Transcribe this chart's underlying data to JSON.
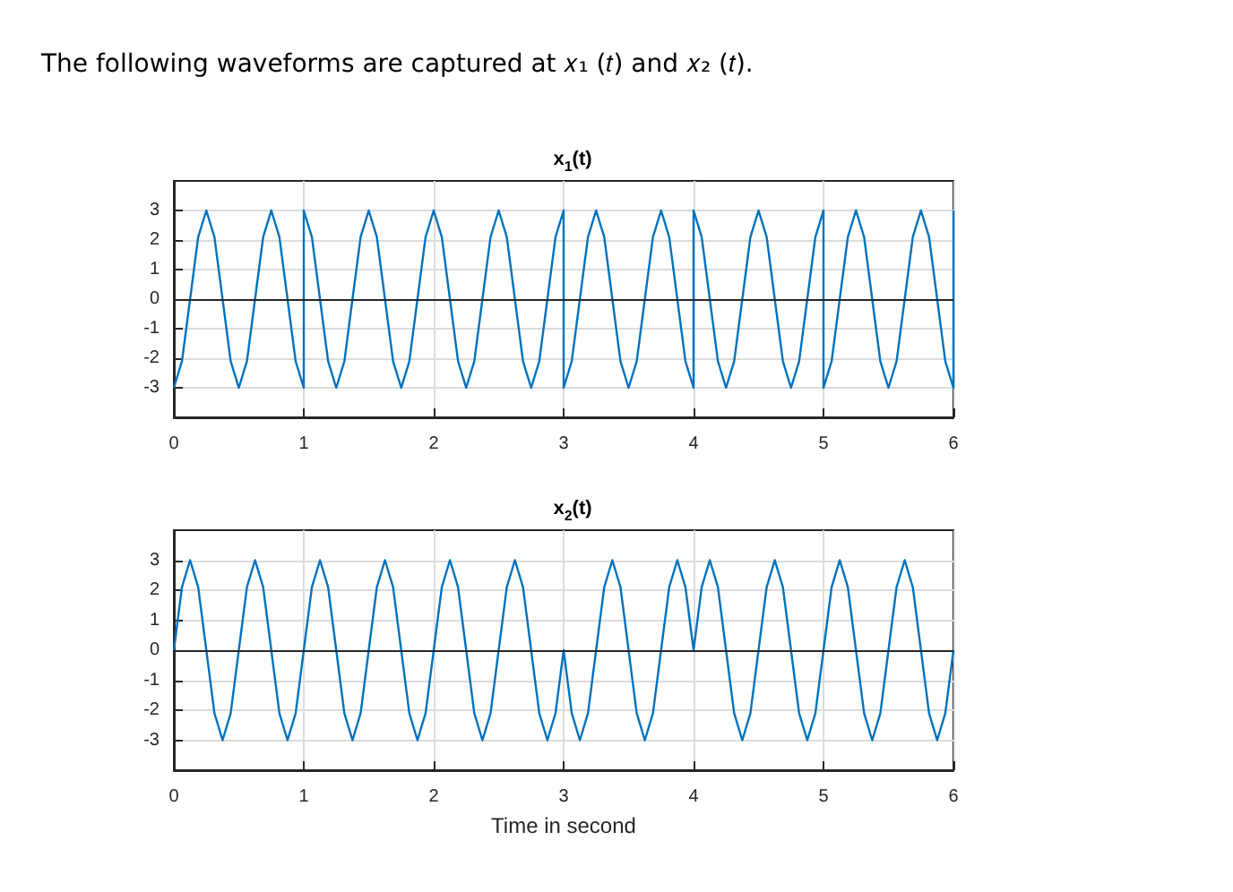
{
  "chart_data": [
    {
      "type": "line",
      "title": "x$_{1}$(t)",
      "annotations": [
        "The following waveforms are captured at 𝑥₁ (𝑡) and 𝑥₂ (𝑡)."
      ],
      "x": [
        0,
        0.0625,
        0.125,
        0.1875,
        0.25,
        0.3125,
        0.375,
        0.4375,
        0.5,
        0.5625,
        0.625,
        0.6875,
        0.75,
        0.8125,
        0.875,
        0.9375,
        1,
        1,
        1.0625,
        1.125,
        1.1875,
        1.25,
        1.3125,
        1.375,
        1.4375,
        1.5,
        1.5625,
        1.625,
        1.6875,
        1.75,
        1.8125,
        1.875,
        1.9375,
        2,
        2.0625,
        2.125,
        2.1875,
        2.25,
        2.3125,
        2.375,
        2.4375,
        2.5,
        2.5625,
        2.625,
        2.6875,
        2.75,
        2.8125,
        2.875,
        2.9375,
        3,
        3,
        3.0625,
        3.125,
        3.1875,
        3.25,
        3.3125,
        3.375,
        3.4375,
        3.5,
        3.5625,
        3.625,
        3.6875,
        3.75,
        3.8125,
        3.875,
        3.9375,
        4,
        4,
        4.0625,
        4.125,
        4.1875,
        4.25,
        4.3125,
        4.375,
        4.4375,
        4.5,
        4.5625,
        4.625,
        4.6875,
        4.75,
        4.8125,
        4.875,
        4.9375,
        5,
        5,
        5.0625,
        5.125,
        5.1875,
        5.25,
        5.3125,
        5.375,
        5.4375,
        5.5,
        5.5625,
        5.625,
        5.6875,
        5.75,
        5.8125,
        5.875,
        5.9375,
        6,
        6
      ],
      "series": [
        {
          "color": "#0072bd",
          "values": [
            -3,
            -2.1,
            0,
            2.1,
            3,
            2.1,
            0,
            -2.1,
            -3,
            -2.1,
            0,
            2.1,
            3,
            2.1,
            0,
            -2.1,
            -3,
            3,
            2.1,
            0,
            -2.1,
            -3,
            -2.1,
            0,
            2.1,
            3,
            2.1,
            0,
            -2.1,
            -3,
            -2.1,
            0,
            2.1,
            3,
            2.1,
            0,
            -2.1,
            -3,
            -2.1,
            0,
            2.1,
            3,
            2.1,
            0,
            -2.1,
            -3,
            -2.1,
            0,
            2.1,
            3,
            -3,
            -2.1,
            0,
            2.1,
            3,
            2.1,
            0,
            -2.1,
            -3,
            -2.1,
            0,
            2.1,
            3,
            2.1,
            0,
            -2.1,
            -3,
            3,
            2.1,
            0,
            -2.1,
            -3,
            -2.1,
            0,
            2.1,
            3,
            2.1,
            0,
            -2.1,
            -3,
            -2.1,
            0,
            2.1,
            3,
            -3,
            -2.1,
            0,
            2.1,
            3,
            2.1,
            0,
            -2.1,
            -3,
            -2.1,
            0,
            2.1,
            3,
            2.1,
            0,
            -2.1,
            -3,
            3
          ]
        }
      ],
      "xlim": [
        0,
        6
      ],
      "xticks": [
        0,
        1,
        2,
        3,
        4,
        5,
        6
      ],
      "ylim": [
        -4,
        4
      ],
      "yticks": [
        -3,
        -2,
        -1,
        0,
        1,
        2,
        3
      ],
      "grid": true,
      "ref_lines": [
        {
          "axis": "y",
          "value": 0,
          "color": "#262626"
        }
      ]
    },
    {
      "type": "line",
      "title": "x$_{2}$(t)",
      "xlabel": "Time in second",
      "x": [
        0,
        0.0625,
        0.125,
        0.1875,
        0.25,
        0.3125,
        0.375,
        0.4375,
        0.5,
        0.5625,
        0.625,
        0.6875,
        0.75,
        0.8125,
        0.875,
        0.9375,
        1,
        1.0625,
        1.125,
        1.1875,
        1.25,
        1.3125,
        1.375,
        1.4375,
        1.5,
        1.5625,
        1.625,
        1.6875,
        1.75,
        1.8125,
        1.875,
        1.9375,
        2,
        2.0625,
        2.125,
        2.1875,
        2.25,
        2.3125,
        2.375,
        2.4375,
        2.5,
        2.5625,
        2.625,
        2.6875,
        2.75,
        2.8125,
        2.875,
        2.9375,
        3,
        3.0625,
        3.125,
        3.1875,
        3.25,
        3.3125,
        3.375,
        3.4375,
        3.5,
        3.5625,
        3.625,
        3.6875,
        3.75,
        3.8125,
        3.875,
        3.9375,
        4,
        4.0625,
        4.125,
        4.1875,
        4.25,
        4.3125,
        4.375,
        4.4375,
        4.5,
        4.5625,
        4.625,
        4.6875,
        4.75,
        4.8125,
        4.875,
        4.9375,
        5,
        5.0625,
        5.125,
        5.1875,
        5.25,
        5.3125,
        5.375,
        5.4375,
        5.5,
        5.5625,
        5.625,
        5.6875,
        5.75,
        5.8125,
        5.875,
        5.9375,
        6
      ],
      "series": [
        {
          "color": "#0072bd",
          "values": [
            0,
            2.1,
            3,
            2.1,
            0,
            -2.1,
            -3,
            -2.1,
            0,
            2.1,
            3,
            2.1,
            0,
            -2.1,
            -3,
            -2.1,
            0,
            2.1,
            3,
            2.1,
            0,
            -2.1,
            -3,
            -2.1,
            0,
            2.1,
            3,
            2.1,
            0,
            -2.1,
            -3,
            -2.1,
            0,
            2.1,
            3,
            2.1,
            0,
            -2.1,
            -3,
            -2.1,
            0,
            2.1,
            3,
            2.1,
            0,
            -2.1,
            -3,
            -2.1,
            0,
            -2.1,
            -3,
            -2.1,
            0,
            2.1,
            3,
            2.1,
            0,
            -2.1,
            -3,
            -2.1,
            0,
            2.1,
            3,
            2.1,
            0,
            2.1,
            3,
            2.1,
            0,
            -2.1,
            -3,
            -2.1,
            0,
            2.1,
            3,
            2.1,
            0,
            -2.1,
            -3,
            -2.1,
            0,
            2.1,
            3,
            2.1,
            0,
            -2.1,
            -3,
            -2.1,
            0,
            2.1,
            3,
            2.1,
            0,
            -2.1,
            -3,
            -2.1,
            0
          ]
        }
      ],
      "xlim": [
        0,
        6
      ],
      "xticks": [
        0,
        1,
        2,
        3,
        4,
        5,
        6
      ],
      "ylim": [
        -4,
        4
      ],
      "yticks": [
        -3,
        -2,
        -1,
        0,
        1,
        2,
        3
      ],
      "grid": true,
      "ref_lines": [
        {
          "axis": "y",
          "value": 0,
          "color": "#262626"
        }
      ]
    }
  ]
}
